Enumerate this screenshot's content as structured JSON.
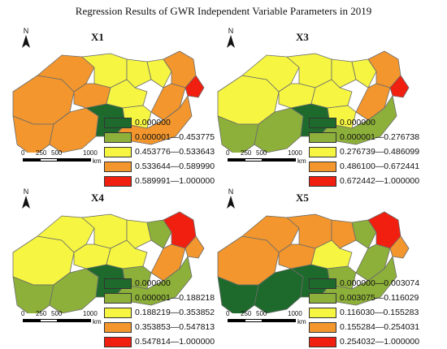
{
  "title": "Regression Results of GWR Independent Variable Parameters in 2019",
  "north_label": "N",
  "scale": {
    "ticks": [
      "0",
      "250",
      "500",
      "1000"
    ],
    "unit": "km"
  },
  "colors": {
    "c0": "#1e6a2c",
    "c1": "#8db03a",
    "c2": "#f5f542",
    "c3": "#f2962d",
    "c4": "#f01f10"
  },
  "panels": [
    {
      "label": "X1",
      "legend": [
        "0.000000",
        "0.000001—0.453775",
        "0.453776—0.533643",
        "0.533644—0.589990",
        "0.589991—1.000000"
      ],
      "regions": {
        "A": "c3",
        "B": "c3",
        "C": "c3",
        "D": "c2",
        "E": "c3",
        "F": "c2",
        "G": "c2",
        "H": "c2",
        "I": "c3",
        "J": "c3",
        "K": "c0",
        "L": "c2",
        "M": "c3",
        "N": "c4",
        "O": "c3"
      }
    },
    {
      "label": "X3",
      "legend": [
        "0.000000",
        "0.000001—0.276738",
        "0.276739—0.486099",
        "0.486100—0.672441",
        "0.672442—1.000000"
      ],
      "regions": {
        "A": "c2",
        "B": "c2",
        "C": "c1",
        "D": "c2",
        "E": "c2",
        "F": "c2",
        "G": "c2",
        "H": "c2",
        "I": "c3",
        "J": "c1",
        "K": "c0",
        "L": "c2",
        "M": "c3",
        "N": "c4",
        "O": "c1"
      }
    },
    {
      "label": "X4",
      "legend": [
        "0.000000",
        "0.000001—0.188218",
        "0.188219—0.353852",
        "0.353853—0.547813",
        "0.547814—1.000000"
      ],
      "regions": {
        "A": "c2",
        "B": "c2",
        "C": "c1",
        "D": "c2",
        "E": "c2",
        "F": "c2",
        "G": "c2",
        "H": "c1",
        "I": "c4",
        "J": "c1",
        "K": "c0",
        "L": "c1",
        "M": "c3",
        "N": "c3",
        "O": "c1"
      }
    },
    {
      "label": "X5",
      "legend": [
        "0.000000—0.003074",
        "0.003075—0.116029",
        "0.116030—0.155283",
        "0.155284—0.254031",
        "0.254032—1.000000"
      ],
      "regions": {
        "A": "c3",
        "B": "c3",
        "C": "c0",
        "D": "c3",
        "E": "c3",
        "F": "c3",
        "G": "c2",
        "H": "c1",
        "I": "c4",
        "J": "c0",
        "K": "c0",
        "L": "c1",
        "M": "c1",
        "N": "c3",
        "O": "c1"
      }
    }
  ]
}
